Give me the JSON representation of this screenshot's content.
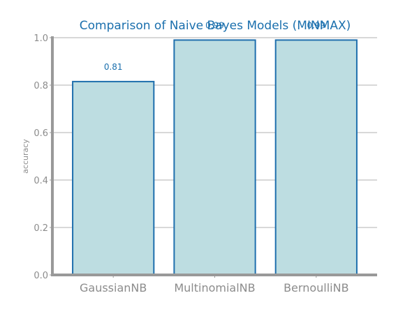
{
  "chart_data": {
    "type": "bar",
    "title": "Comparison of Naive Bayes Models (MINMAX)",
    "xlabel": "",
    "ylabel": "accuracy",
    "categories": [
      "GaussianNB",
      "MultinomialNB",
      "BernoulliNB"
    ],
    "values": [
      0.815,
      0.99,
      0.99
    ],
    "data_labels": [
      "0.81",
      "0.99",
      "0.99"
    ],
    "ylim": [
      0.0,
      1.0
    ],
    "yticks": [
      0.0,
      0.2,
      0.4,
      0.6,
      0.8,
      1.0
    ],
    "ytick_labels": [
      "0.0",
      "0.2",
      "0.4",
      "0.6",
      "0.8",
      "1.0"
    ],
    "grid": "horizontal",
    "colors": {
      "bar_fill": "#bddde1",
      "bar_edge": "#1f6fad",
      "title": "#1a6fad",
      "data_label": "#1a6fad",
      "grid": "#cccccc",
      "axis": "#999999",
      "tick_text": "#8c8c8c"
    }
  }
}
